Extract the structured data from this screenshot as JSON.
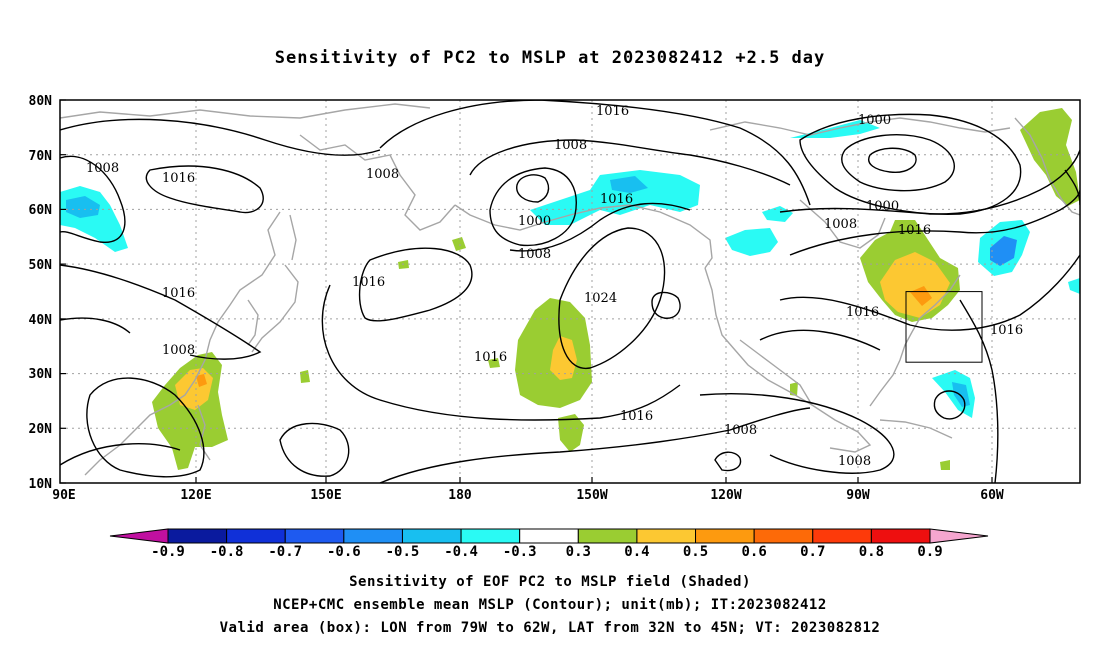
{
  "title": "Sensitivity of PC2 to MSLP at 2023082412 +2.5 day",
  "axes": {
    "y_ticks": [
      "80N",
      "70N",
      "60N",
      "50N",
      "40N",
      "30N",
      "20N",
      "10N"
    ],
    "x_ticks": [
      "90E",
      "120E",
      "150E",
      "180",
      "150W",
      "120W",
      "90W",
      "60W"
    ]
  },
  "contour_labels": [
    {
      "text": "1016"
    },
    {
      "text": "1008"
    },
    {
      "text": "1008"
    },
    {
      "text": "1016"
    },
    {
      "text": "1008"
    },
    {
      "text": "1000"
    },
    {
      "text": "1016"
    },
    {
      "text": "1008"
    },
    {
      "text": "1000"
    },
    {
      "text": "1000"
    },
    {
      "text": "1008"
    },
    {
      "text": "1016"
    },
    {
      "text": "1016"
    },
    {
      "text": "1016"
    },
    {
      "text": "1024"
    },
    {
      "text": "1016"
    },
    {
      "text": "1016"
    },
    {
      "text": "1016"
    },
    {
      "text": "1008"
    },
    {
      "text": "1016"
    },
    {
      "text": "1008"
    },
    {
      "text": "1008"
    }
  ],
  "colorbar": {
    "labels": [
      "-0.9",
      "-0.8",
      "-0.7",
      "-0.6",
      "-0.5",
      "-0.4",
      "-0.3",
      "0.3",
      "0.4",
      "0.5",
      "0.6",
      "0.7",
      "0.8",
      "0.9"
    ],
    "colors": [
      "#0a1a9e",
      "#1030d8",
      "#1e5af0",
      "#1f8ff5",
      "#18bff0",
      "#2afaf4",
      "#ffffff",
      "#9acd32",
      "#fcc832",
      "#fd9a0f",
      "#fd6a08",
      "#fd3a0a",
      "#ee0f0f"
    ],
    "low_end_color": "#c010a0",
    "high_end_color": "#f5a6cf"
  },
  "captions": [
    "Sensitivity of EOF PC2 to MSLP field (Shaded)",
    "NCEP+CMC ensemble mean MSLP (Contour); unit(mb); IT:2023082412",
    "Valid area (box): LON from 79W to 62W, LAT from 32N to 45N; VT: 2023082812"
  ],
  "valid_box": {
    "lon_min": -79,
    "lon_max": -62,
    "lat_min": 32,
    "lat_max": 45
  }
}
